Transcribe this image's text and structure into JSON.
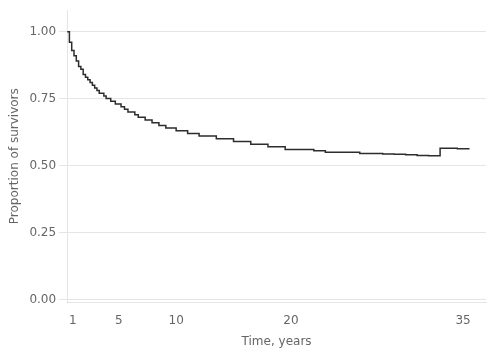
{
  "chart_data": {
    "type": "line",
    "xlabel": "Time, years",
    "ylabel": "Proportion of survivors",
    "xlim": [
      0.5,
      37
    ],
    "ylim": [
      -0.01,
      1.08
    ],
    "xticks": [
      1,
      5,
      10,
      20,
      35
    ],
    "yticks": [
      {
        "value": 0.0,
        "label": "0.00"
      },
      {
        "value": 0.25,
        "label": "0.25"
      },
      {
        "value": 0.5,
        "label": "0.50"
      },
      {
        "value": 0.75,
        "label": "0.75"
      },
      {
        "value": 1.0,
        "label": "1.00"
      }
    ],
    "grid": "y",
    "line_style": "step",
    "color": "#2d2d2d",
    "x": [
      0.5,
      0.7,
      0.9,
      1.1,
      1.3,
      1.5,
      1.7,
      1.9,
      2.1,
      2.3,
      2.5,
      2.7,
      2.9,
      3.1,
      3.3,
      3.5,
      3.7,
      3.9,
      4.1,
      4.3,
      4.5,
      4.7,
      4.9,
      5.2,
      5.5,
      5.8,
      6.1,
      6.4,
      6.7,
      7.0,
      7.3,
      7.6,
      7.9,
      8.2,
      8.5,
      8.8,
      9.1,
      9.4,
      9.7,
      10.0,
      10.5,
      11.0,
      11.5,
      12.0,
      12.5,
      13.0,
      13.5,
      14.0,
      14.5,
      15.0,
      15.5,
      16.0,
      16.5,
      17.0,
      17.5,
      18.0,
      18.5,
      19.0,
      19.5,
      20.0,
      21.0,
      22.0,
      23.0,
      24.0,
      25.0,
      26.0,
      27.0,
      28.0,
      29.0,
      30.0,
      31.0,
      32.0,
      33.0,
      34.5,
      35.5
    ],
    "values": [
      1.0,
      0.96,
      0.93,
      0.91,
      0.89,
      0.87,
      0.86,
      0.84,
      0.83,
      0.82,
      0.81,
      0.8,
      0.79,
      0.78,
      0.77,
      0.77,
      0.76,
      0.75,
      0.75,
      0.74,
      0.74,
      0.73,
      0.73,
      0.72,
      0.71,
      0.7,
      0.7,
      0.69,
      0.68,
      0.68,
      0.67,
      0.67,
      0.66,
      0.66,
      0.65,
      0.65,
      0.64,
      0.64,
      0.64,
      0.63,
      0.63,
      0.62,
      0.62,
      0.61,
      0.61,
      0.61,
      0.6,
      0.6,
      0.6,
      0.59,
      0.59,
      0.59,
      0.58,
      0.58,
      0.58,
      0.57,
      0.57,
      0.57,
      0.56,
      0.56,
      0.56,
      0.555,
      0.55,
      0.55,
      0.55,
      0.545,
      0.545,
      0.543,
      0.542,
      0.54,
      0.538,
      0.537,
      0.565,
      0.563,
      0.56
    ]
  }
}
